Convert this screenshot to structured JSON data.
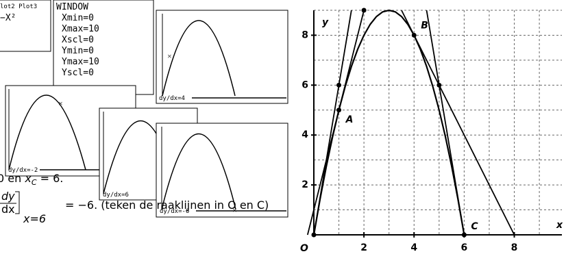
{
  "screens": {
    "plot_header": "lot2 Plot3",
    "y_eq": "−X²",
    "window": {
      "title": "WINDOW",
      "lines": [
        "Xmin=0",
        "Xmax=10",
        "Xscl=0",
        "Ymin=0",
        "Ymax=10",
        "Yscl=0"
      ]
    },
    "derivatives": [
      "dy/dx=4",
      "dy/dx=-2",
      "dy/dx=6",
      "dy/dx=-6"
    ]
  },
  "text": {
    "line1_a": "0 en ",
    "line1_var": "x",
    "line1_sub": "C",
    "line1_b": " = 6.",
    "frac_num": "dy",
    "frac_den": "dx",
    "sub": "x=6",
    "line2": "= −6. (teken de raaklijnen in O en C)"
  },
  "chart_data": {
    "type": "line",
    "x_label": "x",
    "y_label": "y",
    "origin_label": "O",
    "xlim": [
      0,
      9.9
    ],
    "ylim": [
      0,
      9
    ],
    "xticks": [
      2,
      4,
      6,
      8
    ],
    "yticks": [
      2,
      4,
      6,
      8
    ],
    "xgrid": [
      1,
      2,
      3,
      4,
      5,
      6,
      7,
      8,
      9
    ],
    "ygrid": [
      1,
      2,
      3,
      4,
      5,
      6,
      7,
      8,
      9
    ],
    "color": "#000000",
    "curve": {
      "x": [
        0,
        0.25,
        0.5,
        0.75,
        1,
        1.25,
        1.5,
        1.75,
        2,
        2.25,
        2.5,
        2.75,
        3,
        3.25,
        3.5,
        3.75,
        4,
        4.25,
        4.5,
        4.75,
        5,
        5.25,
        5.5,
        5.75,
        6
      ],
      "values": [
        0,
        1.4375,
        2.75,
        3.9375,
        5,
        5.9375,
        6.75,
        7.4375,
        8,
        8.4375,
        8.75,
        8.9375,
        9,
        8.9375,
        8.75,
        8.4375,
        8,
        7.4375,
        6.75,
        5.9375,
        5,
        3.9375,
        2.75,
        1.4375,
        0
      ]
    },
    "tangents": [
      {
        "x": [
          0,
          1.5
        ],
        "values": [
          0,
          9
        ]
      },
      {
        "x": [
          -0.25,
          2
        ],
        "values": [
          0,
          9
        ]
      },
      {
        "x": [
          3.5,
          8
        ],
        "values": [
          9,
          0
        ]
      },
      {
        "x": [
          4.5,
          6
        ],
        "values": [
          9,
          0
        ]
      }
    ],
    "points": {
      "x": [
        0,
        1,
        1,
        2,
        4,
        5,
        6
      ],
      "values": [
        0,
        5,
        6,
        9,
        8,
        6,
        0
      ]
    },
    "annotations": [
      {
        "text": "A",
        "x": 1,
        "y": 5
      },
      {
        "text": "B",
        "x": 4,
        "y": 8
      },
      {
        "text": "C",
        "x": 6,
        "y": 0
      }
    ]
  }
}
